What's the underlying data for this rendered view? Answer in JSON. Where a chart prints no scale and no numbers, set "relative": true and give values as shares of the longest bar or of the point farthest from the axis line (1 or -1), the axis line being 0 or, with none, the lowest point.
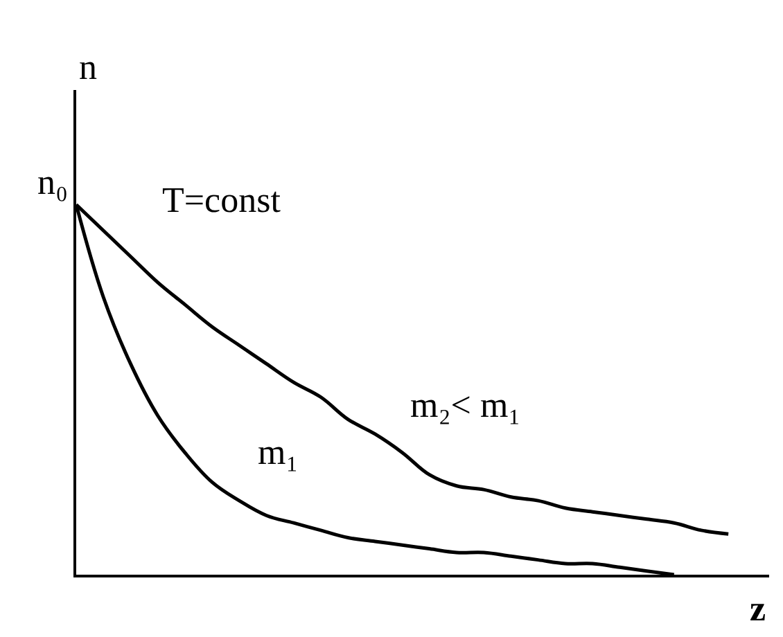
{
  "chart_data": {
    "type": "line",
    "relative": true,
    "xlabel": "z",
    "ylabel": "n",
    "legend": false,
    "grid": false,
    "marker": "none",
    "line_style": "solid",
    "categories": [
      null,
      null,
      null,
      null,
      null,
      null,
      null,
      null,
      null,
      null,
      null,
      null,
      null,
      null,
      null,
      null,
      null,
      null,
      null,
      null,
      null,
      null,
      null,
      null,
      null
    ],
    "series": [
      {
        "name": "m₂< m₁",
        "color": "#000000",
        "values": [
          1,
          0.93,
          0.86,
          0.79,
          0.73,
          0.67,
          0.62,
          0.57,
          0.52,
          0.48,
          0.42,
          0.38,
          0.33,
          0.27,
          0.24,
          0.23,
          0.21,
          0.2,
          0.18,
          0.17,
          0.16,
          0.15,
          0.14,
          0.12,
          0.11
        ]
      },
      {
        "name": "m₁",
        "color": "#000000",
        "values": [
          1,
          0.75,
          0.57,
          0.43,
          0.33,
          0.25,
          0.2,
          0.16,
          0.14,
          0.12,
          0.1,
          0.09,
          0.08,
          0.07,
          0.06,
          0.06,
          0.05,
          0.04,
          0.03,
          0.03,
          0.02,
          0.01,
          0,
          null,
          null
        ]
      }
    ],
    "annotations": [
      "T=const",
      "n₀"
    ]
  }
}
